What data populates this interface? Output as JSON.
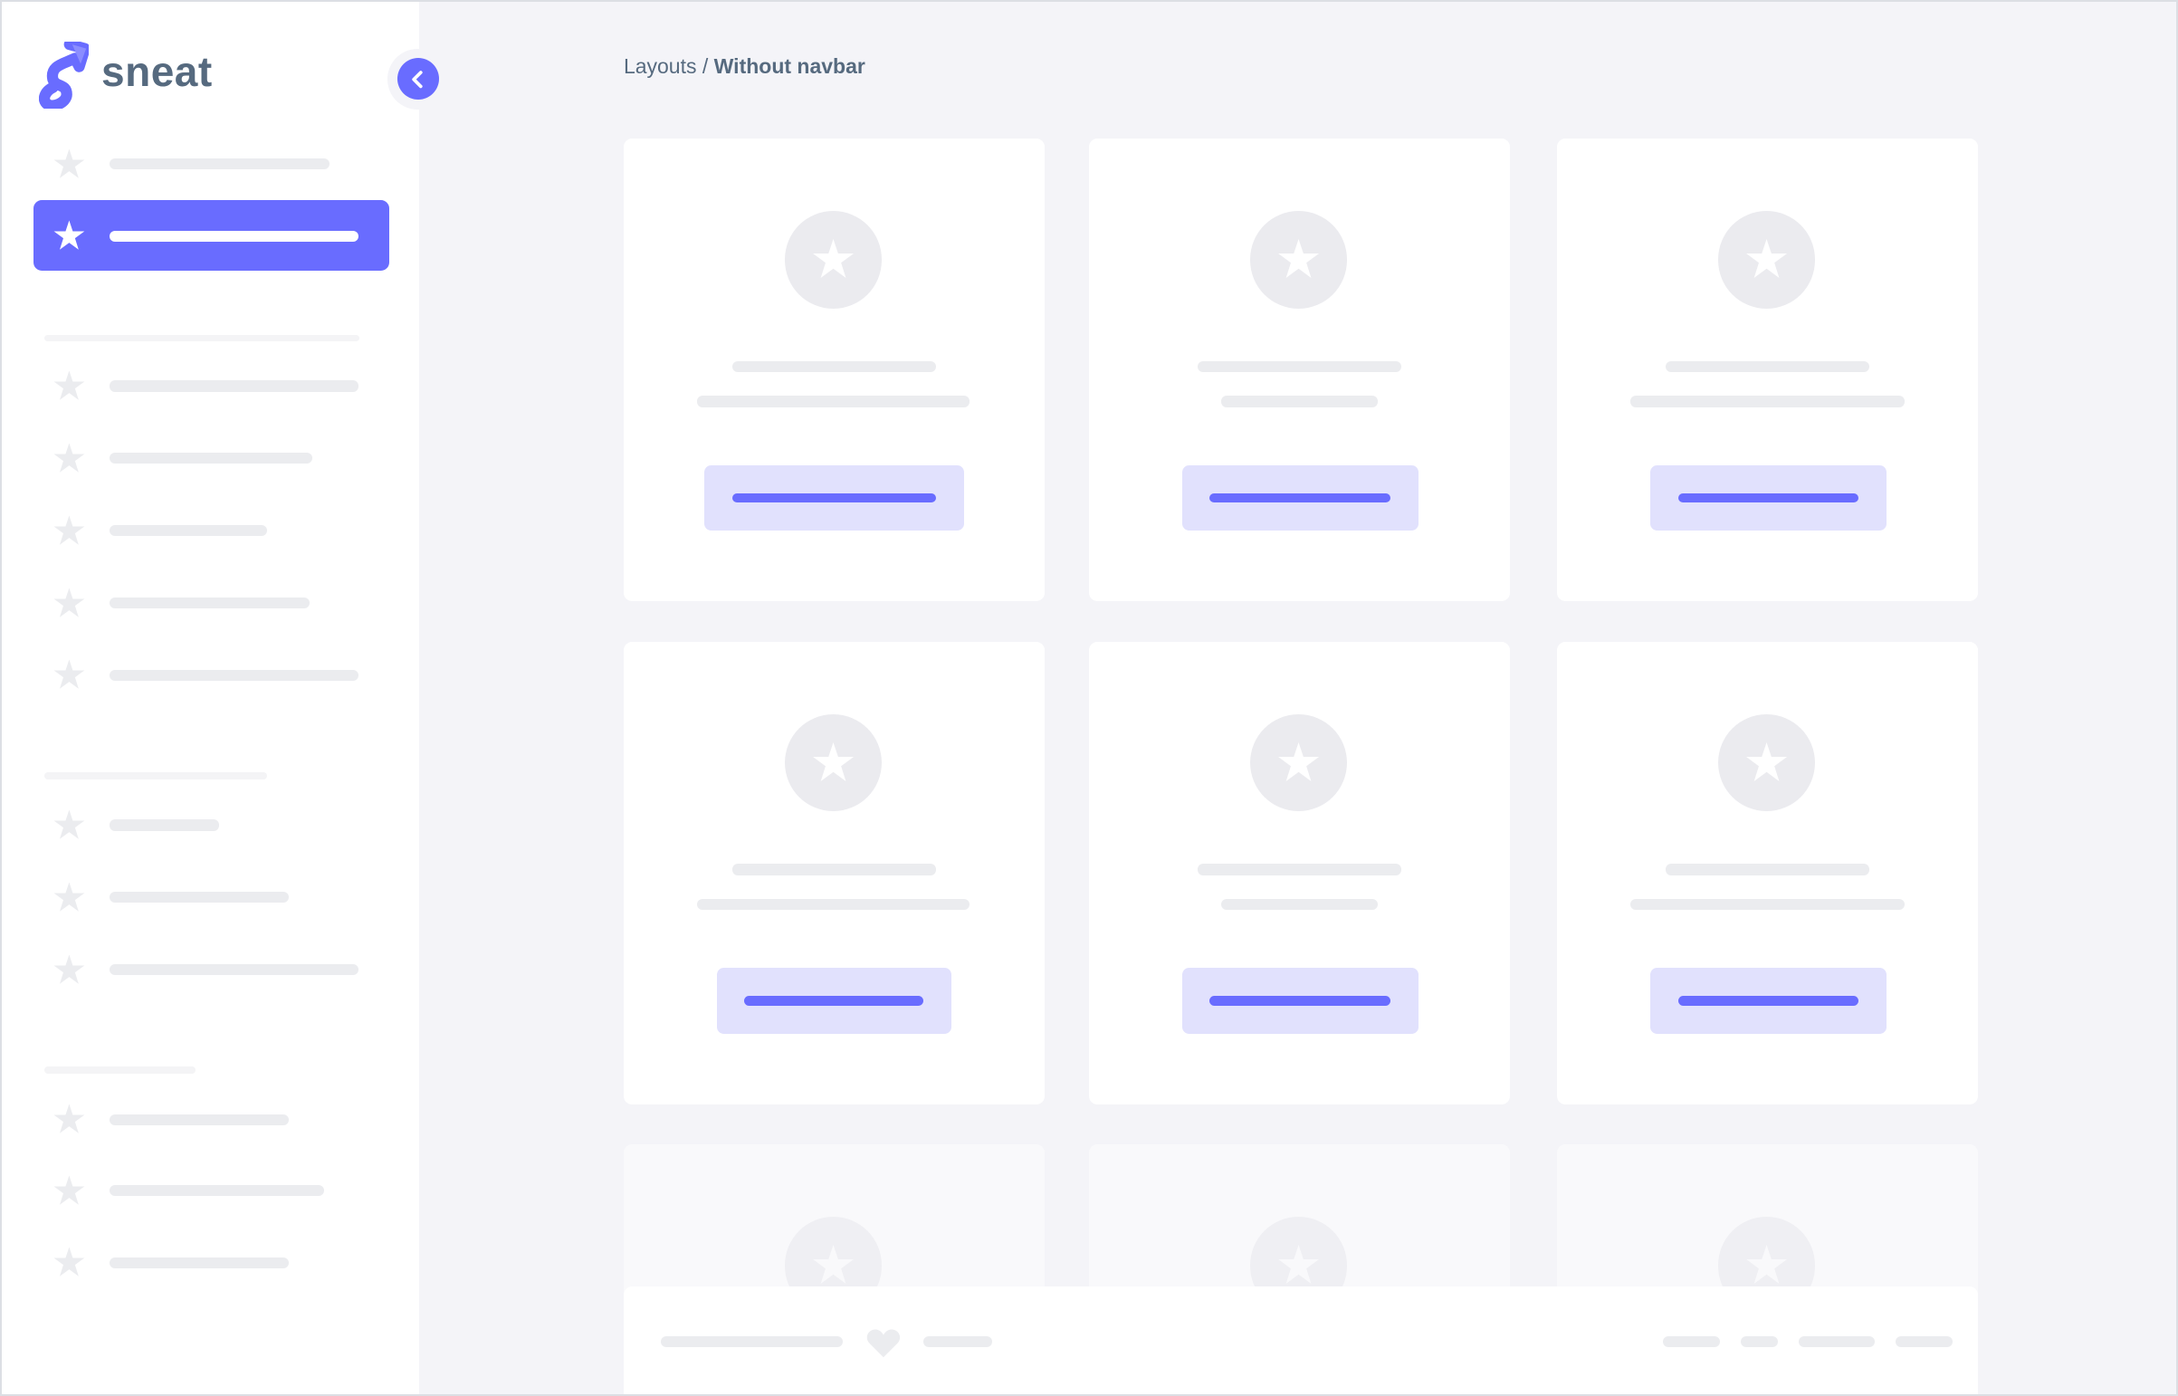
{
  "brand": {
    "name": "sneat",
    "logo_icon": "sneat-s-logo"
  },
  "sidebar": {
    "collapse_icon": "chevron-left-icon",
    "item_icon": "star-icon",
    "active_index": 1
  },
  "breadcrumb": {
    "parent": "Layouts",
    "separator": " / ",
    "current": "Without navbar"
  },
  "footer": {
    "icon": "heart-icon"
  },
  "colors": {
    "primary": "#696cff",
    "primary_light": "#e1e1fd",
    "skeleton": "#ebecef",
    "body_bg": "#f4f4f8",
    "heading": "#566a7f"
  }
}
